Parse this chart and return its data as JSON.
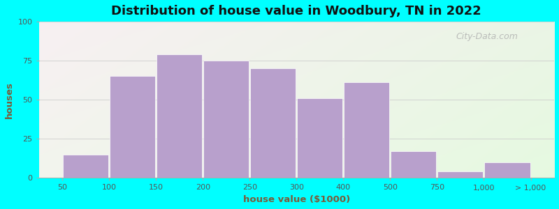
{
  "title": "Distribution of house value in Woodbury, TN in 2022",
  "xlabel": "house value ($1000)",
  "ylabel": "houses",
  "bar_color": "#b8a0cc",
  "bar_edge_color": "#ffffff",
  "background_outer": "#00ffff",
  "ylim": [
    0,
    100
  ],
  "yticks": [
    0,
    25,
    50,
    75,
    100
  ],
  "bar_heights": [
    15,
    65,
    79,
    75,
    70,
    51,
    61,
    17,
    4,
    10
  ],
  "xtick_labels": [
    "50",
    "100",
    "150",
    "200",
    "250",
    "300",
    "400",
    "500",
    "750",
    "1,000",
    "> 1,000"
  ],
  "watermark": "City-Data.com",
  "title_fontsize": 13,
  "title_color": "#111111",
  "axis_label_color": "#7a5c3a",
  "tick_color": "#555555",
  "grid_color": "#cccccc"
}
